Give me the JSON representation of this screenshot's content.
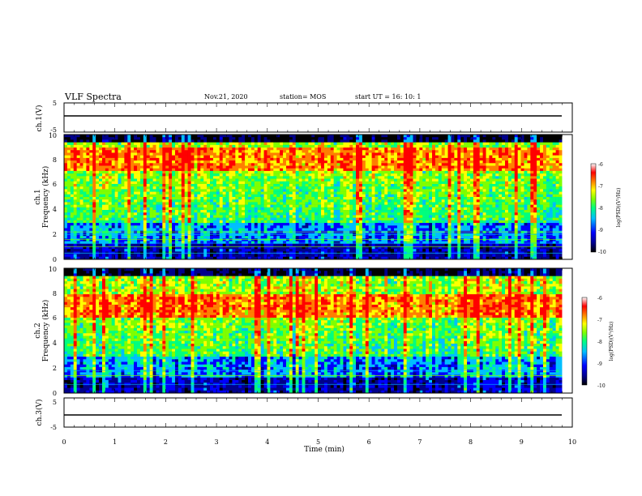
{
  "header": {
    "title": "VLF Spectra",
    "date": "Nov.21, 2020",
    "station": "station= MOS",
    "start": "start  UT =   16: 10: 1"
  },
  "chart_data": [
    {
      "type": "line",
      "panel": "ch1-voltage",
      "ylabel": "ch.1(V)",
      "xlim": [
        0,
        10
      ],
      "ylim": [
        -5,
        5
      ],
      "y_ticks": [
        "5",
        "-5"
      ],
      "series": [
        {
          "x": [
            0,
            9.8
          ],
          "y": [
            0,
            0
          ]
        }
      ]
    },
    {
      "type": "heatmap",
      "panel": "ch1-spectrogram",
      "ylabel": "ch.1\nFrequency (kHz)",
      "xlim": [
        0,
        10
      ],
      "ylim": [
        0,
        10
      ],
      "y_ticks": [
        "0",
        "2",
        "4",
        "6",
        "8",
        "10"
      ],
      "data_end_min": 9.8,
      "dominant_band_khz": [
        7.0,
        9.0
      ],
      "noise_lines_khz": [
        0.5,
        1.0,
        1.3,
        1.6,
        2.0,
        2.2
      ],
      "colorbar": {
        "label": "log(PSD)(V²/Hz)",
        "range": [
          -10,
          -6
        ],
        "ticks": [
          "-6",
          "-7",
          "-8",
          "-9",
          "-10"
        ]
      }
    },
    {
      "type": "heatmap",
      "panel": "ch2-spectrogram",
      "ylabel": "ch.2\nFrequency (kHz)",
      "xlim": [
        0,
        10
      ],
      "ylim": [
        0,
        10
      ],
      "y_ticks": [
        "0",
        "2",
        "4",
        "6",
        "8",
        "10"
      ],
      "data_end_min": 9.8,
      "dominant_band_khz": [
        6.0,
        8.0
      ],
      "noise_lines_khz": [
        0.7,
        1.4,
        1.8
      ],
      "colorbar": {
        "label": "log(PSD)(V²/Hz)",
        "range": [
          -10,
          -6
        ],
        "ticks": [
          "-6",
          "-7",
          "-8",
          "-9",
          "-10"
        ]
      }
    },
    {
      "type": "line",
      "panel": "ch3-voltage",
      "ylabel": "ch.3(V)",
      "xlim": [
        0,
        10
      ],
      "ylim": [
        -5,
        5
      ],
      "y_ticks": [
        "5",
        "-5"
      ],
      "series": [
        {
          "x": [
            0,
            9.8
          ],
          "y": [
            0,
            0
          ]
        }
      ]
    }
  ],
  "xaxis": {
    "label": "Time  (min)",
    "ticks": [
      "0",
      "1",
      "2",
      "3",
      "4",
      "5",
      "6",
      "7",
      "8",
      "9",
      "10"
    ]
  },
  "colors": {
    "colormap": [
      "#000000",
      "#00008b",
      "#0000ff",
      "#00bfff",
      "#00ff7f",
      "#7fff00",
      "#ffff00",
      "#ff7f00",
      "#ff0000",
      "#ffffff"
    ]
  }
}
